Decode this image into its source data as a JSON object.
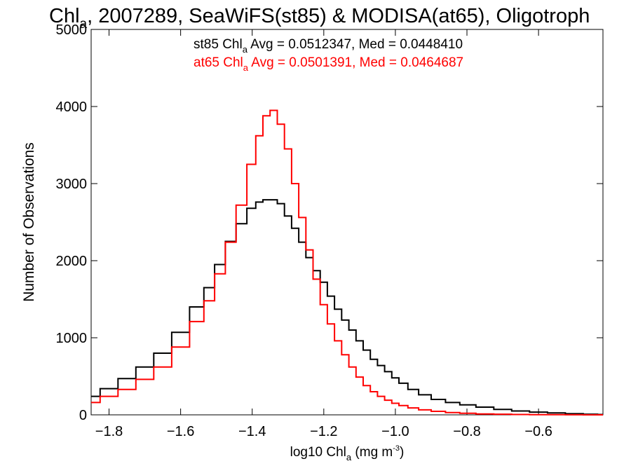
{
  "chart_data": {
    "type": "line",
    "title": {
      "pre": "Chl",
      "sub": "a",
      "post": ", 2007289, SeaWiFS(st85) & MODISA(at65), Oligotroph"
    },
    "xlabel": {
      "pre": "log10 Chl",
      "sub": "a",
      "mid": " (mg m",
      "sup": "-3",
      "post": ")"
    },
    "ylabel": "Number of Observations",
    "xlim": [
      -1.85,
      -0.42
    ],
    "ylim": [
      0,
      5000
    ],
    "x_ticks": [
      -1.8,
      -1.6,
      -1.4,
      -1.2,
      -1.0,
      -0.8,
      -0.6
    ],
    "x_tick_labels": [
      "−1.8",
      "−1.6",
      "−1.4",
      "−1.2",
      "−1.0",
      "−0.8",
      "−0.6"
    ],
    "y_ticks": [
      0,
      1000,
      2000,
      3000,
      4000,
      5000
    ],
    "y_tick_labels": [
      "0",
      "1000",
      "2000",
      "3000",
      "4000",
      "5000"
    ],
    "grid": false,
    "legend_position": "top",
    "series": [
      {
        "color": "#000000",
        "legend": {
          "pre": "st85 Chl",
          "sub": "a",
          "post": " Avg = 0.0512347, Med = 0.0448410"
        },
        "x": [
          -1.85,
          -1.8,
          -1.75,
          -1.7,
          -1.65,
          -1.6,
          -1.55,
          -1.52,
          -1.49,
          -1.46,
          -1.43,
          -1.4,
          -1.38,
          -1.36,
          -1.34,
          -1.32,
          -1.3,
          -1.28,
          -1.26,
          -1.24,
          -1.22,
          -1.2,
          -1.18,
          -1.16,
          -1.14,
          -1.12,
          -1.1,
          -1.08,
          -1.06,
          -1.04,
          -1.02,
          -1.0,
          -0.98,
          -0.95,
          -0.92,
          -0.88,
          -0.84,
          -0.8,
          -0.75,
          -0.7,
          -0.65,
          -0.6,
          -0.55,
          -0.5,
          -0.45,
          -0.42
        ],
        "y": [
          240,
          340,
          470,
          620,
          800,
          1070,
          1400,
          1650,
          1950,
          2250,
          2480,
          2680,
          2760,
          2790,
          2790,
          2740,
          2580,
          2420,
          2240,
          2040,
          1870,
          1720,
          1540,
          1370,
          1230,
          1100,
          960,
          840,
          720,
          640,
          560,
          480,
          410,
          330,
          260,
          200,
          160,
          130,
          100,
          70,
          50,
          35,
          25,
          15,
          8,
          5
        ]
      },
      {
        "color": "#ff0000",
        "legend": {
          "pre": "at65 Chl",
          "sub": "a",
          "post": " Avg = 0.0501391, Med = 0.0464687"
        },
        "x": [
          -1.85,
          -1.8,
          -1.75,
          -1.7,
          -1.65,
          -1.6,
          -1.55,
          -1.52,
          -1.49,
          -1.46,
          -1.43,
          -1.4,
          -1.38,
          -1.36,
          -1.34,
          -1.32,
          -1.3,
          -1.28,
          -1.26,
          -1.24,
          -1.22,
          -1.2,
          -1.18,
          -1.16,
          -1.14,
          -1.12,
          -1.1,
          -1.08,
          -1.06,
          -1.04,
          -1.02,
          -1.0,
          -0.98,
          -0.95,
          -0.92,
          -0.88,
          -0.84,
          -0.8,
          -0.75,
          -0.7,
          -0.65,
          -0.6,
          -0.55,
          -0.5,
          -0.45,
          -0.42
        ],
        "y": [
          160,
          240,
          330,
          460,
          620,
          880,
          1210,
          1480,
          1830,
          2240,
          2720,
          3250,
          3620,
          3880,
          3950,
          3770,
          3450,
          3000,
          2560,
          2140,
          1760,
          1430,
          1180,
          960,
          780,
          620,
          490,
          380,
          300,
          240,
          190,
          150,
          120,
          90,
          65,
          45,
          30,
          20,
          12,
          8,
          5,
          3,
          2,
          1,
          0,
          0
        ]
      }
    ]
  }
}
